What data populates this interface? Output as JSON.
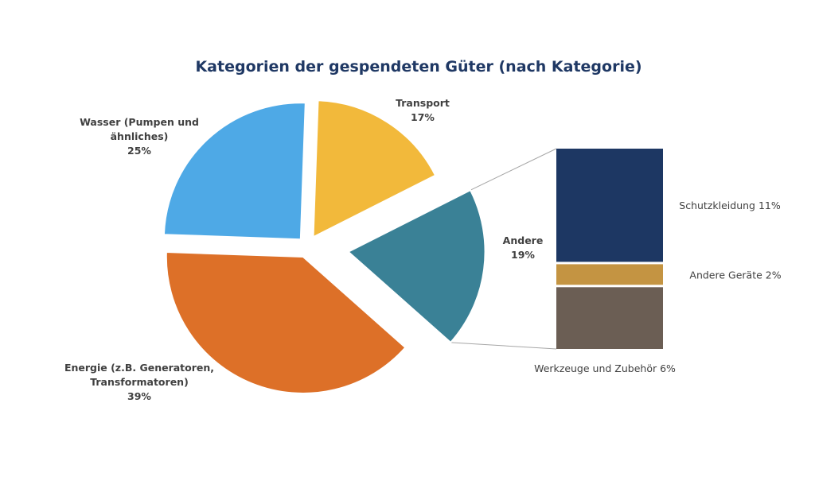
{
  "chart_data": {
    "type": "bar-of-pie",
    "title": "Kategorien der gespendeten Güter (nach Kategorie)",
    "pie": {
      "slices": [
        {
          "name": "Transport",
          "value": 17,
          "label_lines": [
            "Transport",
            "17%"
          ],
          "color": "#f2b93b"
        },
        {
          "name": "Andere",
          "value": 19,
          "label_lines": [
            "Andere",
            "19%"
          ],
          "color": "#3a8196"
        },
        {
          "name": "Energie (z.B. Generatoren, Transformatoren)",
          "value": 39,
          "label_lines": [
            "Energie (z.B. Generatoren,",
            "Transformatoren)",
            "39%"
          ],
          "color": "#dd7028"
        },
        {
          "name": "Wasser (Pumpen und ähnliches)",
          "value": 25,
          "label_lines": [
            "Wasser (Pumpen und",
            "ähnliches)",
            "25%"
          ],
          "color": "#4ea9e6"
        }
      ]
    },
    "bar": {
      "of_slice": "Andere",
      "segments": [
        {
          "name": "Schutzkleidung",
          "value": 11,
          "label": "Schutzkleidung 11%",
          "color": "#1d3763"
        },
        {
          "name": "Andere Geräte",
          "value": 2,
          "label": "Andere Geräte 2%",
          "color": "#c49442"
        },
        {
          "name": "Werkzeuge und Zubehör",
          "value": 6,
          "label": "Werkzeuge und Zubehör 6%",
          "color": "#6b5e54"
        }
      ]
    }
  }
}
